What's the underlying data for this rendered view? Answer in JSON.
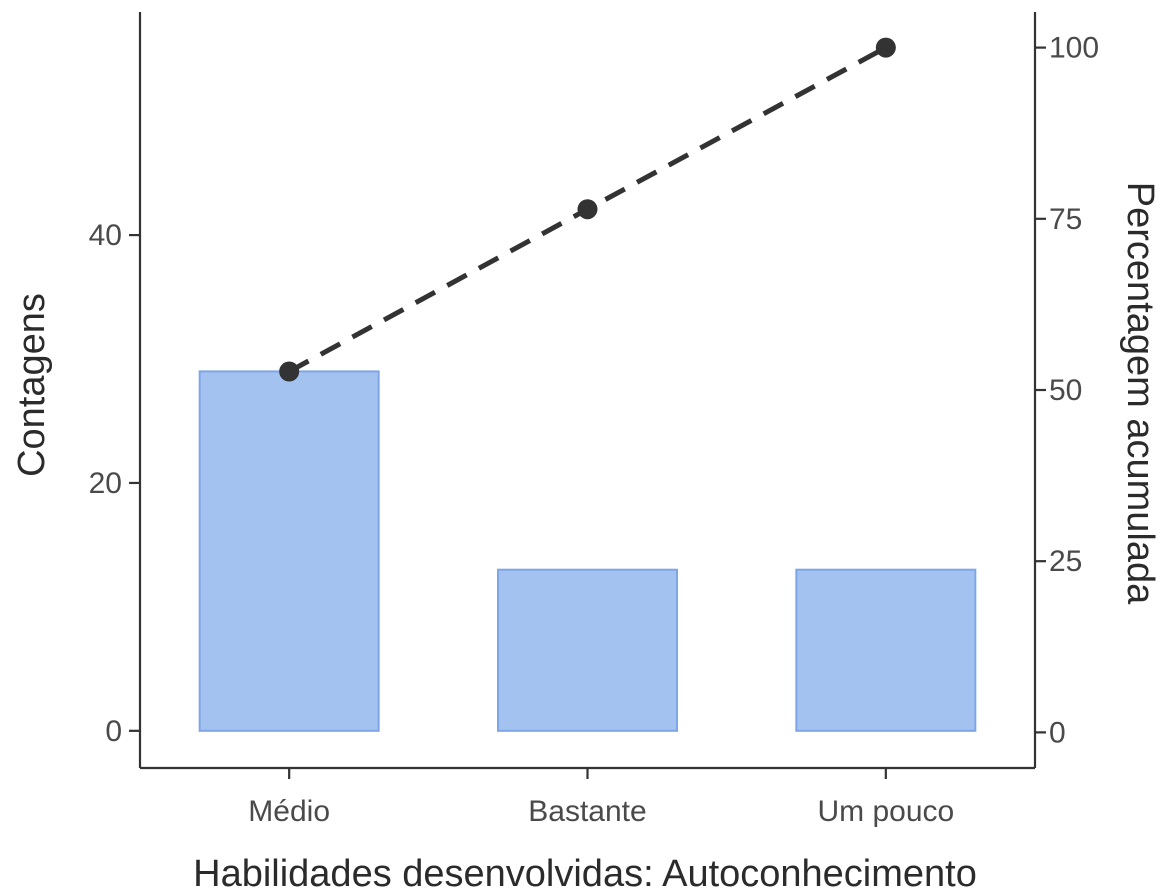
{
  "chart_data": {
    "type": "bar",
    "categories": [
      "Médio",
      "Bastante",
      "Um pouco"
    ],
    "series": [
      {
        "type": "bar",
        "axis": "left",
        "values": [
          29,
          13,
          13
        ]
      },
      {
        "type": "line",
        "axis": "right",
        "line_style": "dashed",
        "markers": true,
        "values": [
          52.7,
          76.4,
          100
        ]
      }
    ],
    "xlabel": "Habilidades desenvolvidas: Autoconhecimento",
    "ylabel": "Contagens",
    "ylabel_right": "Percentagem acumulada",
    "ylim": [
      -3,
      58
    ],
    "ylim_right": [
      -5.2,
      105.2
    ],
    "yticks": [
      0,
      20,
      40
    ],
    "yticks_right": [
      0,
      25,
      50,
      75,
      100
    ],
    "grid": false,
    "colors": {
      "bar_fill": "#a4c2f0",
      "bar_stroke": "#7ea6e6",
      "line": "#333333"
    }
  }
}
